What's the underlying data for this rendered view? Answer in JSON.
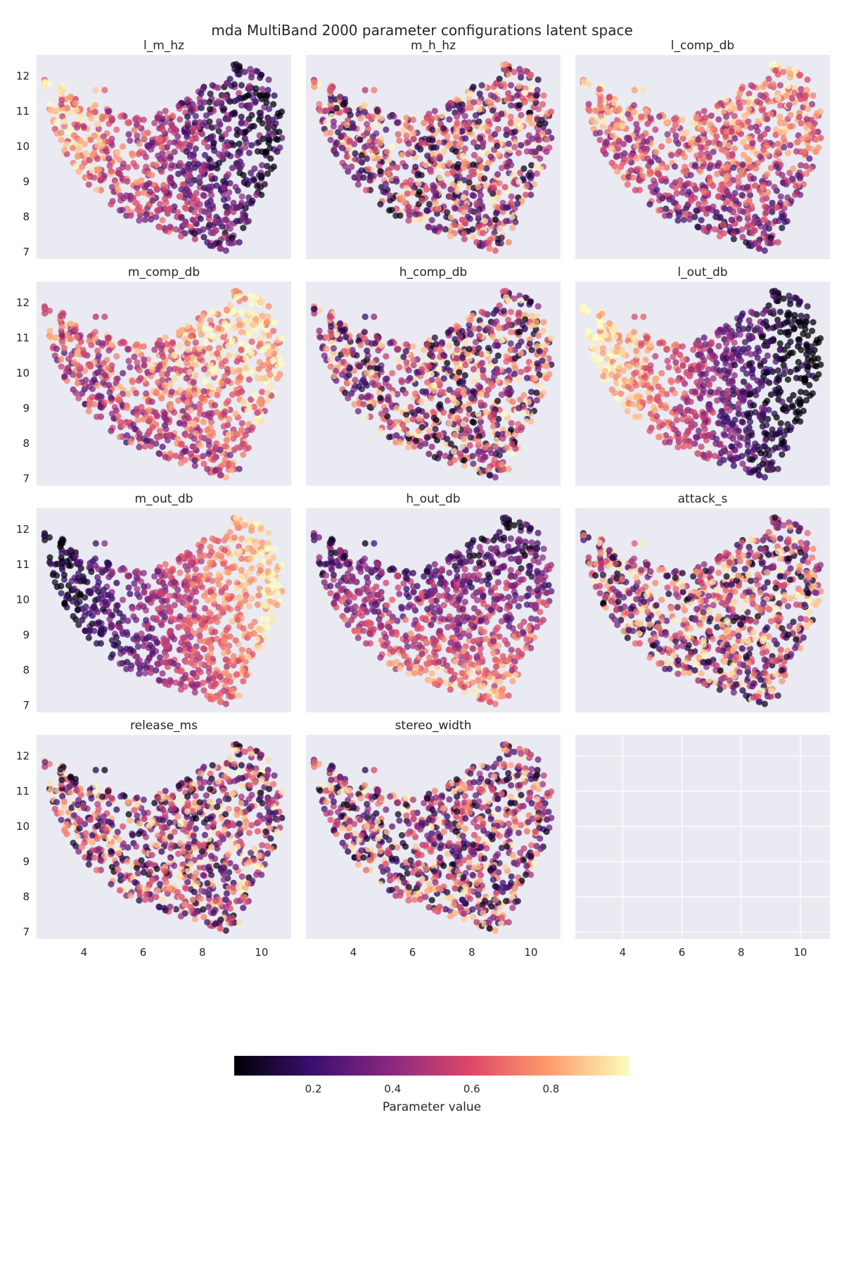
{
  "chart_data": {
    "type": "scatter",
    "title": "mda MultiBand 2000 parameter configurations latent space",
    "n_points": 2000,
    "xlim": [
      2.4,
      11.0
    ],
    "ylim": [
      6.8,
      12.6
    ],
    "x_ticks": [
      4,
      6,
      8,
      10
    ],
    "y_ticks": [
      7,
      8,
      9,
      10,
      11,
      12
    ],
    "grid": true,
    "colormap": "magma",
    "colorbar": {
      "label": "Parameter value",
      "range": [
        0.0,
        1.0
      ],
      "ticks": [
        0.2,
        0.4,
        0.6,
        0.8
      ],
      "placement": "bottom"
    },
    "panels": [
      {
        "title": "l_m_hz",
        "pattern": "left-bright"
      },
      {
        "title": "m_h_hz",
        "pattern": "random"
      },
      {
        "title": "l_comp_db",
        "pattern": "upper-bright"
      },
      {
        "title": "m_comp_db",
        "pattern": "topright-bright"
      },
      {
        "title": "h_comp_db",
        "pattern": "random"
      },
      {
        "title": "l_out_db",
        "pattern": "left-bright-strong"
      },
      {
        "title": "m_out_db",
        "pattern": "right-bright-strong"
      },
      {
        "title": "h_out_db",
        "pattern": "bottom-bright"
      },
      {
        "title": "attack_s",
        "pattern": "random"
      },
      {
        "title": "release_ms",
        "pattern": "random"
      },
      {
        "title": "stereo_width",
        "pattern": "random"
      },
      {
        "title": "",
        "pattern": "empty"
      }
    ]
  },
  "colors": {
    "axes_bg": "#eaeaf2",
    "grid": "#ffffff",
    "magma_stops": [
      "#000004",
      "#3b0f70",
      "#8c2981",
      "#de4968",
      "#fe9f6d",
      "#fcfdbf"
    ]
  }
}
